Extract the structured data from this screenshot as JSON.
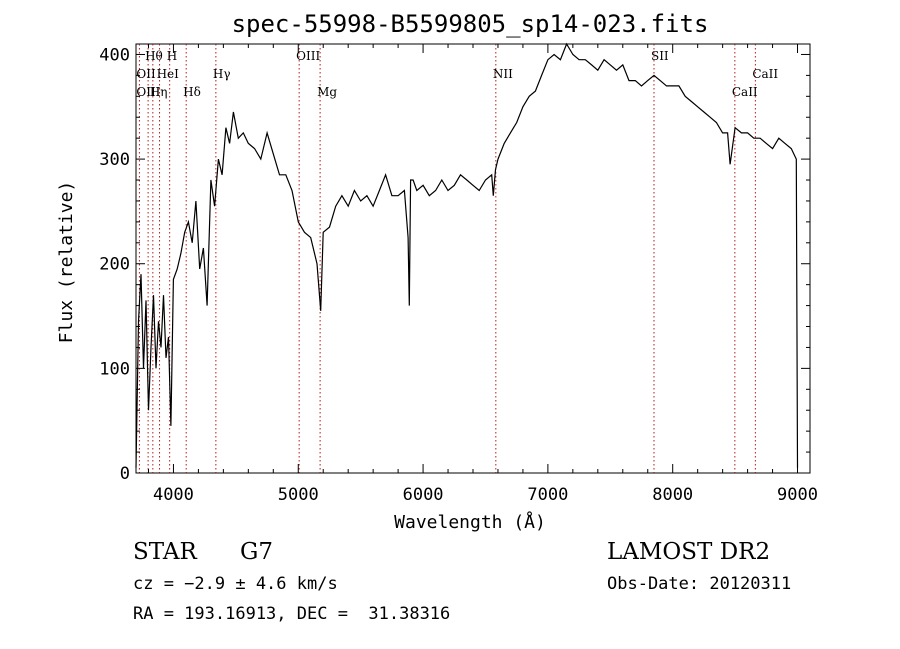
{
  "chart_data": {
    "type": "line",
    "title": "spec-55998-B5599805_sp14-023.fits",
    "xlabel": "Wavelength (Å)",
    "ylabel": "Flux (relative)",
    "xlim": [
      3700,
      9100
    ],
    "ylim": [
      0,
      410
    ],
    "xticks": [
      4000,
      5000,
      6000,
      7000,
      8000,
      9000
    ],
    "yticks": [
      0,
      100,
      200,
      300,
      400
    ],
    "grid": false,
    "series": [
      {
        "x": [
          3700,
          3720,
          3740,
          3760,
          3780,
          3800,
          3820,
          3840,
          3860,
          3880,
          3900,
          3920,
          3940,
          3960,
          3980,
          4000,
          4030,
          4060,
          4090,
          4120,
          4150,
          4180,
          4210,
          4240,
          4270,
          4300,
          4330,
          4360,
          4390,
          4420,
          4450,
          4480,
          4520,
          4560,
          4600,
          4650,
          4700,
          4750,
          4800,
          4850,
          4900,
          4950,
          5000,
          5050,
          5100,
          5150,
          5180,
          5200,
          5250,
          5300,
          5350,
          5400,
          5450,
          5500,
          5550,
          5600,
          5650,
          5700,
          5750,
          5800,
          5850,
          5880,
          5890,
          5900,
          5920,
          5950,
          6000,
          6050,
          6100,
          6150,
          6200,
          6250,
          6300,
          6350,
          6400,
          6450,
          6500,
          6550,
          6563,
          6580,
          6600,
          6650,
          6700,
          6750,
          6800,
          6850,
          6900,
          6950,
          7000,
          7050,
          7100,
          7150,
          7200,
          7250,
          7300,
          7350,
          7400,
          7450,
          7500,
          7550,
          7600,
          7650,
          7700,
          7750,
          7800,
          7850,
          7900,
          7950,
          8000,
          8050,
          8100,
          8150,
          8200,
          8250,
          8300,
          8350,
          8400,
          8440,
          8460,
          8500,
          8550,
          8600,
          8650,
          8700,
          8750,
          8800,
          8850,
          8900,
          8950,
          8990,
          9000
        ],
        "y": [
          5,
          145,
          190,
          100,
          165,
          60,
          120,
          170,
          100,
          145,
          120,
          170,
          110,
          130,
          45,
          185,
          195,
          210,
          230,
          240,
          220,
          260,
          195,
          215,
          160,
          280,
          255,
          300,
          285,
          330,
          315,
          345,
          320,
          325,
          315,
          310,
          300,
          325,
          305,
          285,
          285,
          270,
          240,
          230,
          225,
          200,
          155,
          230,
          235,
          255,
          265,
          255,
          270,
          260,
          265,
          255,
          270,
          285,
          265,
          265,
          270,
          225,
          160,
          280,
          280,
          270,
          275,
          265,
          270,
          280,
          270,
          275,
          285,
          280,
          275,
          270,
          280,
          285,
          265,
          290,
          300,
          315,
          325,
          335,
          350,
          360,
          365,
          380,
          395,
          400,
          395,
          410,
          400,
          395,
          395,
          390,
          385,
          395,
          390,
          385,
          390,
          375,
          375,
          370,
          375,
          380,
          375,
          370,
          370,
          370,
          360,
          355,
          350,
          345,
          340,
          335,
          325,
          325,
          295,
          330,
          325,
          325,
          320,
          320,
          315,
          310,
          320,
          315,
          310,
          300,
          5
        ]
      }
    ],
    "line_markers": [
      {
        "label": "Hθ",
        "x": 3797,
        "row": 0
      },
      {
        "label": "H",
        "x": 3970,
        "row": 0
      },
      {
        "label": "OII",
        "x": 3727,
        "row": 1
      },
      {
        "label": "HeI",
        "x": 3889,
        "row": 1
      },
      {
        "label": "OIII",
        "x": 3727,
        "row": 2
      },
      {
        "label": "Hη",
        "x": 3835,
        "row": 2
      },
      {
        "label": "Hδ",
        "x": 4102,
        "row": 2
      },
      {
        "label": "Hγ",
        "x": 4340,
        "row": 1
      },
      {
        "label": "OIII",
        "x": 5007,
        "row": 0
      },
      {
        "label": "Mg",
        "x": 5175,
        "row": 2
      },
      {
        "label": "NII",
        "x": 6583,
        "row": 1
      },
      {
        "label": "SII",
        "x": 7850,
        "row": 0
      },
      {
        "label": "CaII",
        "x": 8662,
        "row": 1
      },
      {
        "label": "CaII",
        "x": 8498,
        "row": 2
      }
    ],
    "marker_lines_x": [
      3727,
      3797,
      3835,
      3889,
      3970,
      4102,
      4340,
      5007,
      5175,
      6583,
      7850,
      8498,
      8662
    ],
    "marker_color": "#b00000"
  },
  "info": {
    "object_type": "STAR",
    "subclass": "G7",
    "cz": "cz = −2.9 ± 4.6 km/s",
    "coords": "RA = 193.16913, DEC =  31.38316",
    "survey": "LAMOST DR2",
    "obs_date": "Obs-Date: 20120311"
  }
}
